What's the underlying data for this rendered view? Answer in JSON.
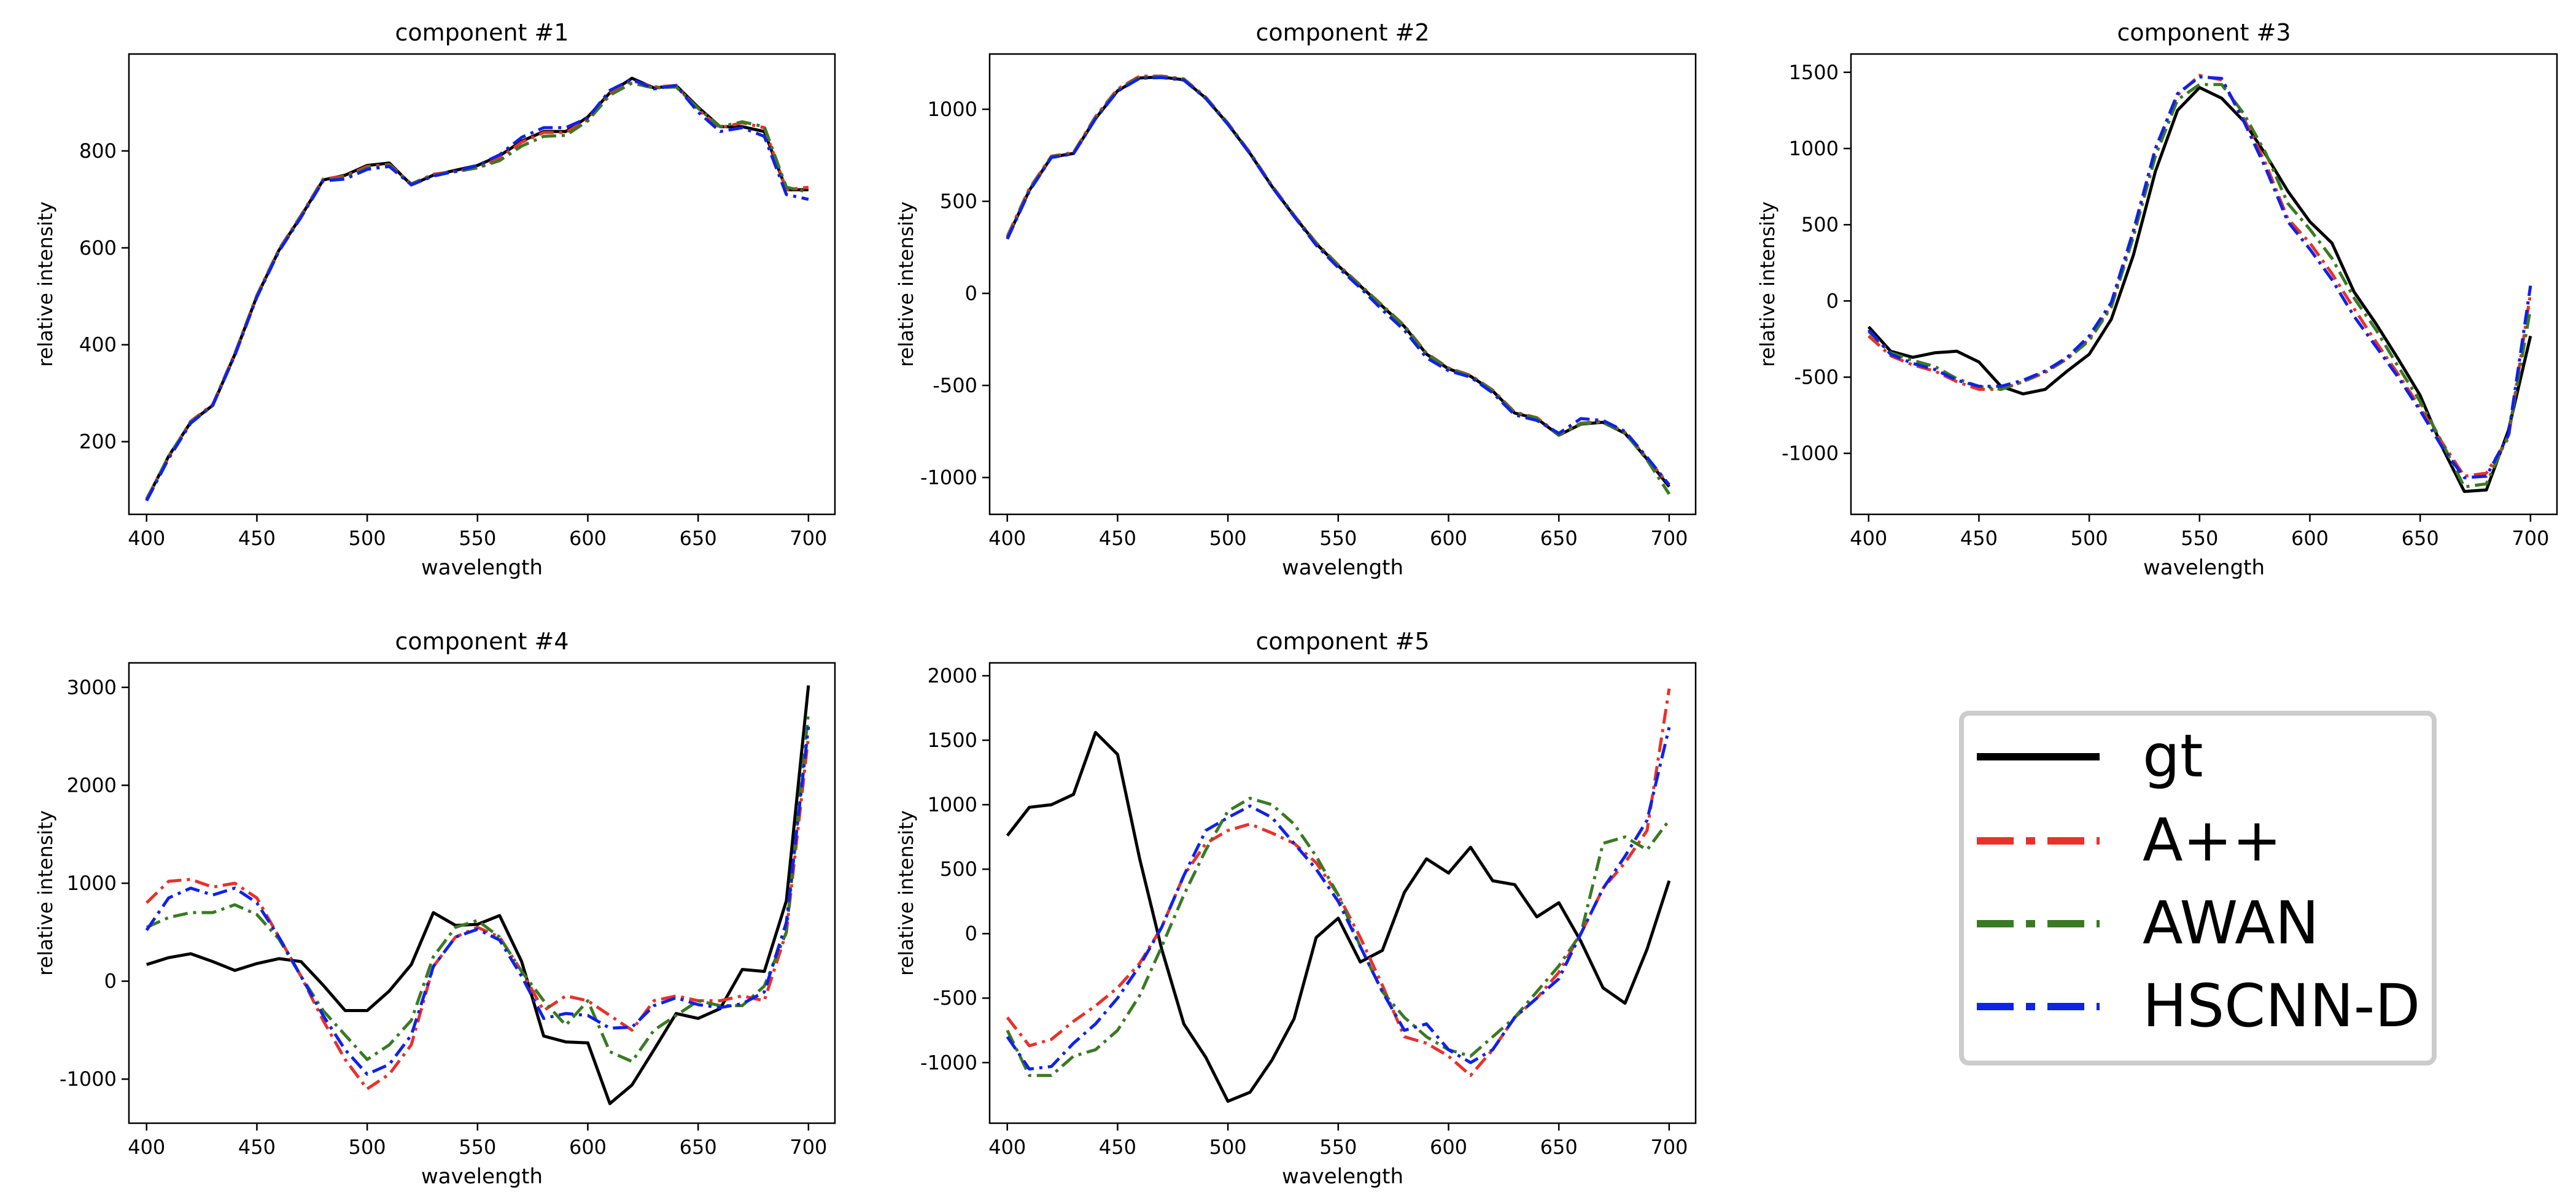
{
  "legend": {
    "entries": [
      {
        "label": "gt",
        "color": "#000000",
        "dash": "solid"
      },
      {
        "label": "A++",
        "color": "#e8312a",
        "dash": "dashdot"
      },
      {
        "label": "AWAN",
        "color": "#3a7a22",
        "dash": "dashdot"
      },
      {
        "label": "HSCNN-D",
        "color": "#0f22e8",
        "dash": "dashdot"
      }
    ]
  },
  "chart_data": [
    {
      "type": "line",
      "title": "component #1",
      "xlabel": "wavelength",
      "ylabel": "relative intensity",
      "xlim": [
        392,
        712
      ],
      "ylim": [
        50,
        1000
      ],
      "xticks": [
        400,
        450,
        500,
        550,
        600,
        650,
        700
      ],
      "yticks": [
        200,
        400,
        600,
        800
      ],
      "x": [
        400,
        410,
        420,
        430,
        440,
        450,
        460,
        470,
        480,
        490,
        500,
        510,
        520,
        530,
        540,
        550,
        560,
        570,
        580,
        590,
        600,
        610,
        620,
        630,
        640,
        650,
        660,
        670,
        680,
        690,
        700
      ],
      "series": [
        {
          "name": "gt",
          "values": [
            80,
            170,
            240,
            275,
            380,
            500,
            595,
            665,
            740,
            750,
            770,
            775,
            730,
            750,
            760,
            770,
            790,
            820,
            840,
            840,
            870,
            920,
            950,
            930,
            935,
            890,
            850,
            850,
            840,
            720,
            720
          ]
        },
        {
          "name": "A++",
          "values": [
            82,
            168,
            242,
            277,
            382,
            502,
            597,
            667,
            742,
            748,
            768,
            772,
            732,
            752,
            758,
            765,
            785,
            818,
            838,
            838,
            865,
            918,
            945,
            932,
            935,
            885,
            848,
            858,
            848,
            720,
            725
          ]
        },
        {
          "name": "AWAN",
          "values": [
            80,
            170,
            240,
            276,
            380,
            500,
            595,
            665,
            740,
            745,
            765,
            770,
            732,
            750,
            757,
            765,
            780,
            810,
            830,
            832,
            862,
            915,
            940,
            930,
            932,
            888,
            850,
            860,
            850,
            725,
            715
          ]
        },
        {
          "name": "HSCNN-D",
          "values": [
            78,
            165,
            238,
            275,
            378,
            498,
            593,
            663,
            738,
            742,
            762,
            768,
            730,
            748,
            758,
            770,
            792,
            828,
            848,
            848,
            868,
            925,
            948,
            928,
            935,
            880,
            840,
            848,
            830,
            710,
            700
          ]
        }
      ]
    },
    {
      "type": "line",
      "title": "component #2",
      "xlabel": "wavelength",
      "ylabel": "relative intensity",
      "xlim": [
        392,
        712
      ],
      "ylim": [
        -1200,
        1300
      ],
      "xticks": [
        400,
        450,
        500,
        550,
        600,
        650,
        700
      ],
      "yticks": [
        -1000,
        -500,
        0,
        500,
        1000
      ],
      "x": [
        400,
        410,
        420,
        430,
        440,
        450,
        460,
        470,
        480,
        490,
        500,
        510,
        520,
        530,
        540,
        550,
        560,
        570,
        580,
        590,
        600,
        610,
        620,
        630,
        640,
        650,
        660,
        670,
        680,
        690,
        700
      ],
      "series": [
        {
          "name": "gt",
          "values": [
            300,
            560,
            740,
            760,
            950,
            1100,
            1170,
            1175,
            1160,
            1060,
            920,
            760,
            580,
            420,
            270,
            150,
            40,
            -70,
            -180,
            -330,
            -410,
            -450,
            -530,
            -650,
            -680,
            -770,
            -710,
            -700,
            -760,
            -900,
            -1050
          ]
        },
        {
          "name": "A++",
          "values": [
            310,
            570,
            745,
            765,
            960,
            1110,
            1180,
            1180,
            1165,
            1065,
            925,
            765,
            585,
            425,
            275,
            155,
            45,
            -65,
            -175,
            -325,
            -405,
            -445,
            -525,
            -645,
            -675,
            -765,
            -705,
            -695,
            -755,
            -895,
            -1040
          ]
        },
        {
          "name": "AWAN",
          "values": [
            300,
            565,
            742,
            762,
            955,
            1105,
            1175,
            1178,
            1162,
            1062,
            922,
            762,
            582,
            422,
            272,
            152,
            42,
            -68,
            -178,
            -328,
            -408,
            -448,
            -528,
            -648,
            -678,
            -768,
            -708,
            -698,
            -758,
            -905,
            -1090
          ]
        },
        {
          "name": "HSCNN-D",
          "values": [
            295,
            555,
            738,
            758,
            948,
            1098,
            1168,
            1172,
            1158,
            1058,
            918,
            758,
            578,
            418,
            262,
            140,
            30,
            -90,
            -200,
            -350,
            -420,
            -455,
            -540,
            -660,
            -690,
            -760,
            -680,
            -690,
            -750,
            -890,
            -1040
          ]
        }
      ]
    },
    {
      "type": "line",
      "title": "component #3",
      "xlabel": "wavelength",
      "ylabel": "relative intensity",
      "xlim": [
        392,
        712
      ],
      "ylim": [
        -1400,
        1620
      ],
      "xticks": [
        400,
        450,
        500,
        550,
        600,
        650,
        700
      ],
      "yticks": [
        -1000,
        -500,
        0,
        500,
        1000,
        1500
      ],
      "x": [
        400,
        410,
        420,
        430,
        440,
        450,
        460,
        470,
        480,
        490,
        500,
        510,
        520,
        530,
        540,
        550,
        560,
        570,
        580,
        590,
        600,
        610,
        620,
        630,
        640,
        650,
        660,
        670,
        680,
        690,
        700
      ],
      "series": [
        {
          "name": "gt",
          "values": [
            -170,
            -330,
            -370,
            -340,
            -330,
            -400,
            -560,
            -610,
            -580,
            -460,
            -350,
            -120,
            300,
            850,
            1250,
            1400,
            1330,
            1180,
            960,
            720,
            520,
            380,
            60,
            -150,
            -380,
            -620,
            -960,
            -1250,
            -1240,
            -850,
            -230
          ]
        },
        {
          "name": "A++",
          "values": [
            -230,
            -360,
            -420,
            -460,
            -530,
            -580,
            -580,
            -530,
            -470,
            -380,
            -250,
            -30,
            450,
            1000,
            1350,
            1480,
            1450,
            1200,
            900,
            540,
            380,
            180,
            -50,
            -270,
            -480,
            -700,
            -930,
            -1150,
            -1130,
            -900,
            50
          ]
        },
        {
          "name": "AWAN",
          "values": [
            -200,
            -340,
            -390,
            -430,
            -510,
            -560,
            -580,
            -530,
            -460,
            -380,
            -260,
            -40,
            420,
            950,
            1320,
            1420,
            1420,
            1230,
            970,
            640,
            470,
            280,
            20,
            -190,
            -430,
            -660,
            -930,
            -1220,
            -1200,
            -880,
            -50
          ]
        },
        {
          "name": "HSCNN-D",
          "values": [
            -190,
            -350,
            -410,
            -450,
            -520,
            -560,
            -560,
            -520,
            -460,
            -370,
            -230,
            -10,
            460,
            1000,
            1360,
            1470,
            1460,
            1180,
            870,
            520,
            340,
            140,
            -100,
            -300,
            -500,
            -720,
            -960,
            -1160,
            -1150,
            -880,
            100
          ]
        }
      ]
    },
    {
      "type": "line",
      "title": "component #4",
      "xlabel": "wavelength",
      "ylabel": "relative intensity",
      "xlim": [
        392,
        712
      ],
      "ylim": [
        -1450,
        3250
      ],
      "xticks": [
        400,
        450,
        500,
        550,
        600,
        650,
        700
      ],
      "yticks": [
        -1000,
        0,
        1000,
        2000,
        3000
      ],
      "x": [
        400,
        410,
        420,
        430,
        440,
        450,
        460,
        470,
        480,
        490,
        500,
        510,
        520,
        530,
        540,
        550,
        560,
        570,
        580,
        590,
        600,
        610,
        620,
        630,
        640,
        650,
        660,
        670,
        680,
        690,
        700
      ],
      "series": [
        {
          "name": "gt",
          "values": [
            170,
            240,
            280,
            200,
            110,
            180,
            230,
            200,
            -40,
            -300,
            -300,
            -100,
            170,
            700,
            570,
            580,
            670,
            200,
            -560,
            -620,
            -630,
            -1250,
            -1060,
            -700,
            -330,
            -380,
            -280,
            120,
            100,
            820,
            3020
          ]
        },
        {
          "name": "A++",
          "values": [
            800,
            1020,
            1040,
            960,
            1000,
            850,
            450,
            50,
            -400,
            -800,
            -1100,
            -950,
            -650,
            150,
            450,
            550,
            450,
            100,
            -300,
            -150,
            -200,
            -350,
            -500,
            -200,
            -150,
            -200,
            -200,
            -150,
            -200,
            500,
            2500
          ]
        },
        {
          "name": "AWAN",
          "values": [
            550,
            650,
            700,
            700,
            780,
            680,
            430,
            50,
            -300,
            -550,
            -800,
            -650,
            -400,
            250,
            550,
            620,
            450,
            100,
            -200,
            -450,
            -200,
            -720,
            -820,
            -500,
            -350,
            -200,
            -250,
            -250,
            -50,
            500,
            2750
          ]
        },
        {
          "name": "HSCNN-D",
          "values": [
            520,
            850,
            950,
            880,
            950,
            800,
            450,
            50,
            -350,
            -700,
            -950,
            -850,
            -550,
            150,
            450,
            530,
            420,
            50,
            -380,
            -330,
            -350,
            -480,
            -470,
            -250,
            -170,
            -240,
            -270,
            -230,
            -110,
            600,
            2600
          ]
        }
      ]
    },
    {
      "type": "line",
      "title": "component #5",
      "xlabel": "wavelength",
      "ylabel": "relative intensity",
      "xlim": [
        392,
        712
      ],
      "ylim": [
        -1470,
        2100
      ],
      "xticks": [
        400,
        450,
        500,
        550,
        600,
        650,
        700
      ],
      "yticks": [
        -1000,
        -500,
        0,
        500,
        1000,
        1500,
        2000
      ],
      "x": [
        400,
        410,
        420,
        430,
        440,
        450,
        460,
        470,
        480,
        490,
        500,
        510,
        520,
        530,
        540,
        550,
        560,
        570,
        580,
        590,
        600,
        610,
        620,
        630,
        640,
        650,
        660,
        670,
        680,
        690,
        700
      ],
      "series": [
        {
          "name": "gt",
          "values": [
            760,
            980,
            1000,
            1080,
            1560,
            1390,
            580,
            -120,
            -700,
            -960,
            -1300,
            -1230,
            -980,
            -660,
            -30,
            120,
            -220,
            -130,
            320,
            580,
            470,
            670,
            410,
            380,
            130,
            240,
            -60,
            -420,
            -540,
            -120,
            410
          ]
        },
        {
          "name": "A++",
          "values": [
            -650,
            -870,
            -820,
            -680,
            -560,
            -420,
            -230,
            50,
            450,
            700,
            800,
            850,
            780,
            700,
            550,
            300,
            -30,
            -400,
            -800,
            -850,
            -950,
            -1100,
            -900,
            -650,
            -500,
            -300,
            0,
            350,
            550,
            800,
            1900
          ]
        },
        {
          "name": "AWAN",
          "values": [
            -750,
            -1100,
            -1100,
            -950,
            -900,
            -750,
            -480,
            -100,
            300,
            650,
            950,
            1050,
            1000,
            850,
            600,
            300,
            -100,
            -450,
            -650,
            -800,
            -900,
            -950,
            -800,
            -650,
            -450,
            -250,
            0,
            700,
            750,
            650,
            880
          ]
        },
        {
          "name": "HSCNN-D",
          "values": [
            -800,
            -1050,
            -1030,
            -850,
            -700,
            -500,
            -250,
            50,
            450,
            800,
            900,
            990,
            900,
            700,
            500,
            250,
            -100,
            -450,
            -750,
            -700,
            -900,
            -1000,
            -900,
            -650,
            -500,
            -350,
            0,
            350,
            600,
            880,
            1600
          ]
        }
      ]
    }
  ]
}
